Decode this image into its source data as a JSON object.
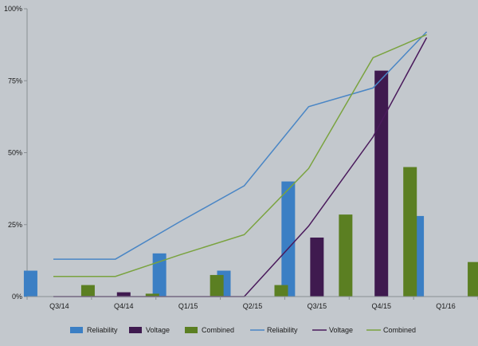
{
  "chart_data": {
    "type": "bar",
    "categories": [
      "Q3/14",
      "Q4/14",
      "Q1/15",
      "Q2/15",
      "Q3/15",
      "Q4/15",
      "Q1/16"
    ],
    "ylim": [
      0,
      100
    ],
    "y_ticks": [
      0,
      25,
      50,
      75,
      100
    ],
    "y_tick_labels": [
      "0%",
      "25%",
      "50%",
      "75%",
      "100%"
    ],
    "grid": false,
    "legend_position": "bottom",
    "bar_series": [
      {
        "name": "Reliability",
        "color": "#3b7fc4",
        "values": [
          9,
          0,
          15,
          9,
          40,
          0,
          28
        ]
      },
      {
        "name": "Voltage",
        "color": "#3f1a4f",
        "values": [
          0,
          1.5,
          0,
          0,
          20.5,
          78.5,
          0
        ]
      },
      {
        "name": "Combined",
        "color": "#5b7f22",
        "values": [
          4,
          1,
          7.5,
          4,
          28.5,
          45,
          12
        ]
      }
    ],
    "line_series": [
      {
        "name": "Reliability",
        "color": "#4a86c5",
        "values": [
          13,
          13,
          26,
          38.5,
          66,
          72.5,
          92
        ]
      },
      {
        "name": "Voltage",
        "color": "#4a1a5c",
        "values": [
          0,
          0,
          0,
          0,
          24.5,
          55.5,
          90
        ]
      },
      {
        "name": "Combined",
        "color": "#7aa33f",
        "values": [
          7,
          7,
          14.5,
          21.5,
          44.5,
          83,
          91
        ]
      }
    ],
    "legend": [
      "Reliability",
      "Voltage",
      "Combined",
      "Reliability",
      "Voltage",
      "Combined"
    ]
  }
}
